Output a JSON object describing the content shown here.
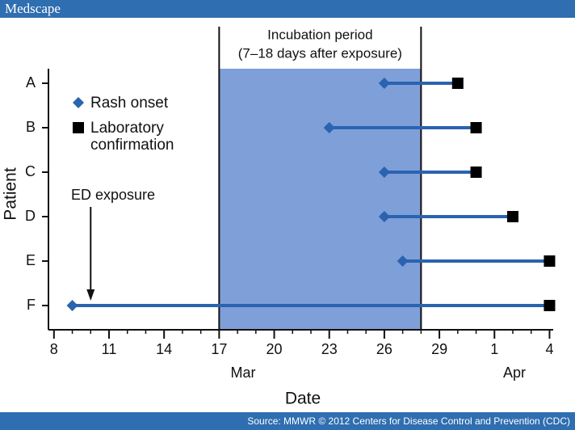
{
  "header": "Medscape",
  "footer": "Source: MMWR © 2012 Centers for Disease Control and Prevention (CDC)",
  "chart_data": {
    "type": "dumbbell",
    "x_label": "Date",
    "y_label": "Patient",
    "categories": [
      "A",
      "B",
      "C",
      "D",
      "E",
      "F"
    ],
    "series": [
      {
        "name": "Rash onset",
        "color": "#2a63b0",
        "marker": "diamond",
        "values": [
          26,
          23,
          26,
          26,
          27,
          9
        ]
      },
      {
        "name": "Laboratory confirmation",
        "color": "#000000",
        "marker": "square",
        "values": [
          30,
          31,
          31,
          33,
          35,
          35
        ]
      }
    ],
    "line_color": "#2a63b0",
    "xlim": [
      7.7,
      35.2
    ],
    "xticks": [
      8,
      11,
      14,
      17,
      20,
      23,
      26,
      29,
      {
        "value": 32,
        "label": "1"
      },
      {
        "value": 35,
        "label": "4"
      }
    ],
    "months": [
      "Mar",
      "Apr"
    ],
    "shade": {
      "from": 17,
      "to": 28,
      "color": "#7f9fd8"
    },
    "incubation_label": [
      "Incubation period",
      "(7–18 days after exposure)"
    ],
    "ed_exposure": {
      "label": "ED exposure",
      "x": 10
    }
  }
}
